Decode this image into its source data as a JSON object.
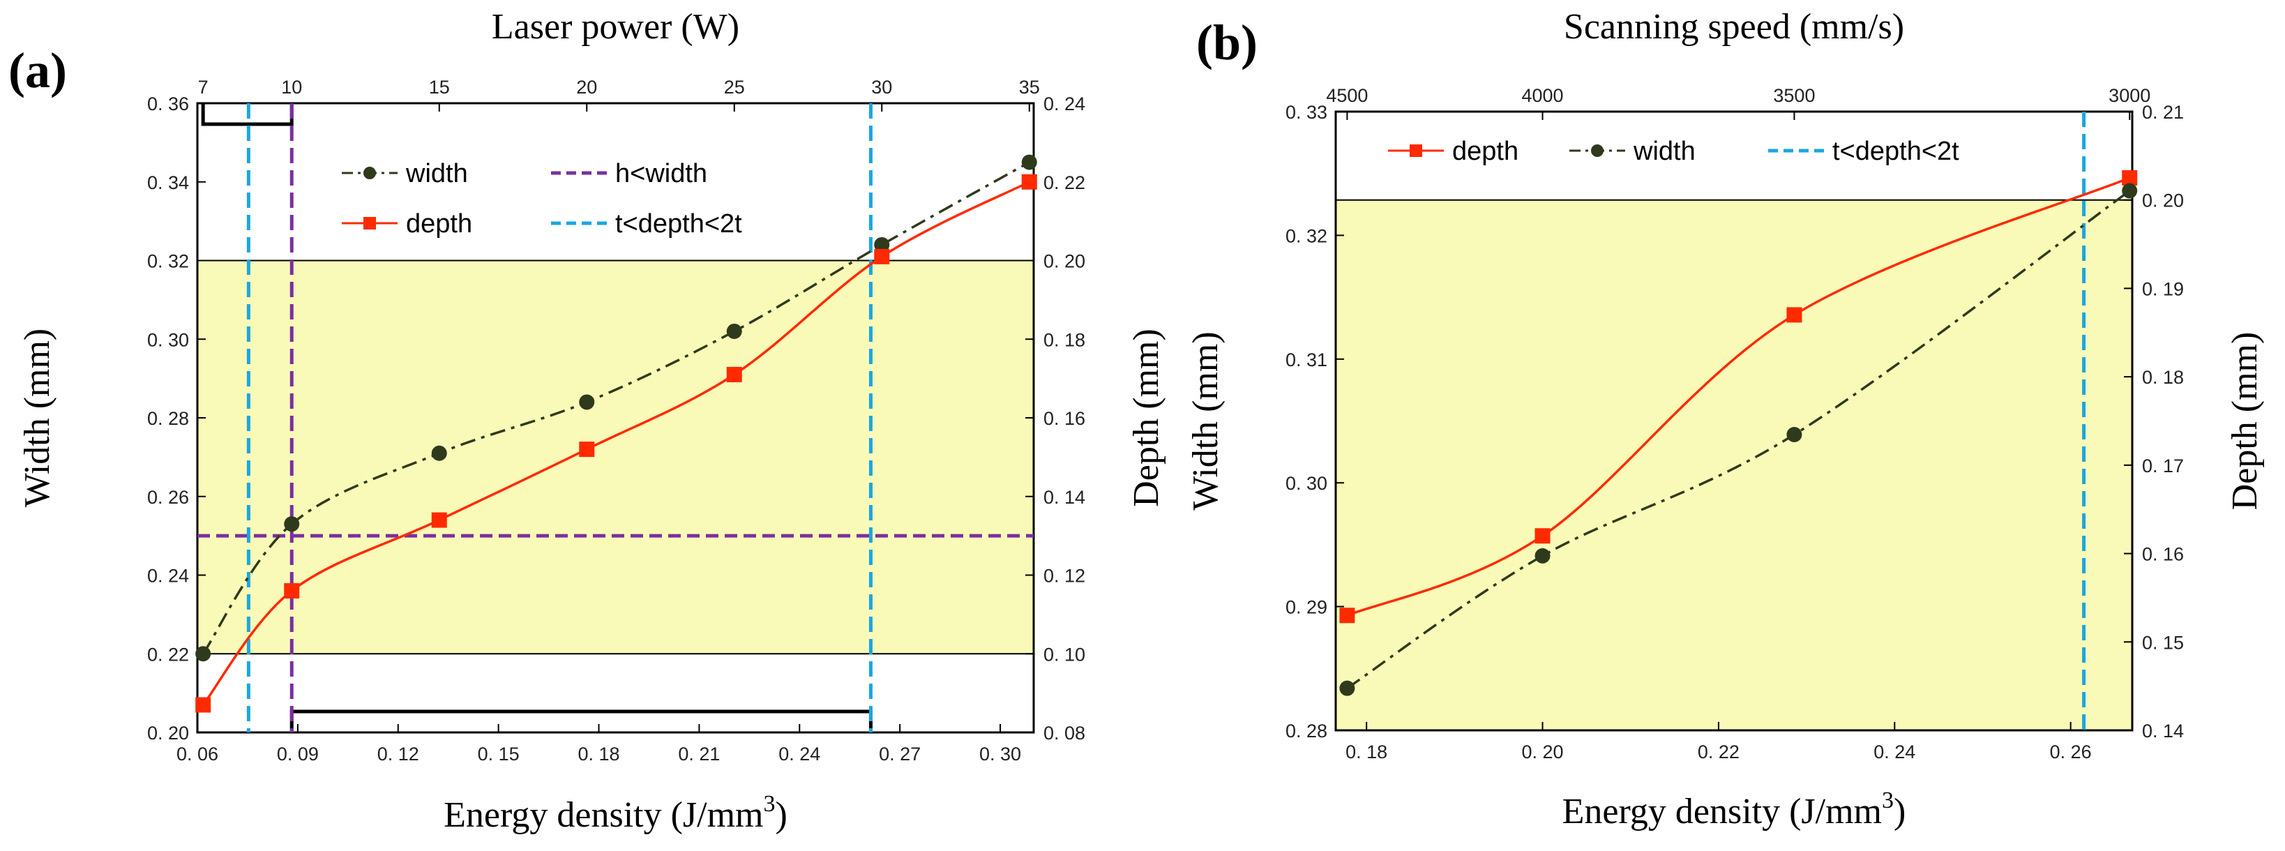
{
  "chart_data": [
    {
      "panel_label": "(a)",
      "type": "line",
      "xlabel": "Energy density (J/mm",
      "xlabel_sup": "3",
      "xlabel_end": ")",
      "ylabel_left": "Width (mm)",
      "ylabel_right": "Depth (mm)",
      "top_label": "Laser power (W)",
      "xlim": [
        0.06,
        0.31
      ],
      "ylim_left": [
        0.2,
        0.36
      ],
      "ylim_right": [
        0.08,
        0.24
      ],
      "x_ticks": [
        0.06,
        0.09,
        0.12,
        0.15,
        0.18,
        0.21,
        0.24,
        0.27,
        0.3
      ],
      "x_tick_labels": [
        "0. 06",
        "0. 09",
        "0. 12",
        "0. 15",
        "0. 18",
        "0. 21",
        "0. 24",
        "0. 27",
        "0. 30"
      ],
      "y_left_ticks": [
        0.2,
        0.22,
        0.24,
        0.26,
        0.28,
        0.3,
        0.32,
        0.34,
        0.36
      ],
      "y_left_tick_labels": [
        "0. 20",
        "0. 22",
        "0. 24",
        "0. 26",
        "0. 28",
        "0. 30",
        "0. 32",
        "0. 34",
        "0. 36"
      ],
      "y_right_ticks": [
        0.08,
        0.1,
        0.12,
        0.14,
        0.16,
        0.18,
        0.2,
        0.22,
        0.24
      ],
      "y_right_tick_labels": [
        "0. 08",
        "0. 10",
        "0. 12",
        "0. 14",
        "0. 16",
        "0. 18",
        "0. 20",
        "0. 22",
        "0. 24"
      ],
      "top_ticks": [
        0.0617,
        0.0882,
        0.1323,
        0.1764,
        0.2205,
        0.2646,
        0.3087
      ],
      "top_tick_labels": [
        "7",
        "10",
        "15",
        "20",
        "25",
        "30",
        "35"
      ],
      "series": [
        {
          "name": "width",
          "axis": "left",
          "color": "#2f3a1c",
          "marker": "circle",
          "dash": "dash-dot",
          "x": [
            0.0617,
            0.0882,
            0.1323,
            0.1764,
            0.2205,
            0.2646,
            0.3087
          ],
          "values": [
            0.22,
            0.253,
            0.271,
            0.284,
            0.302,
            0.324,
            0.345
          ]
        },
        {
          "name": "depth",
          "axis": "right",
          "color": "#ff2a00",
          "marker": "square",
          "dash": "solid",
          "x": [
            0.0617,
            0.0882,
            0.1323,
            0.1764,
            0.2205,
            0.2646,
            0.3087
          ],
          "values": [
            0.087,
            0.116,
            0.134,
            0.152,
            0.171,
            0.201,
            0.22
          ]
        }
      ],
      "ref_lines": [
        {
          "name": "h<width",
          "color": "#7b2fa0",
          "orientation": "horizontal",
          "axis": "left",
          "value": 0.25
        },
        {
          "name": "h<width",
          "color": "#7b2fa0",
          "orientation": "vertical",
          "value": 0.0882
        },
        {
          "name": "t<depth<2t",
          "color": "#1aa7e0",
          "orientation": "vertical",
          "value": 0.0753
        },
        {
          "name": "t<depth<2t",
          "color": "#1aa7e0",
          "orientation": "vertical",
          "value": 0.2613
        }
      ],
      "band": {
        "axis": "right",
        "from": 0.1,
        "to": 0.2,
        "color": "#fafab8"
      },
      "legend": {
        "position": "top",
        "entries": [
          {
            "label": "width",
            "type": "width"
          },
          {
            "label": "h<width",
            "type": "purple"
          },
          {
            "label": "depth",
            "type": "depth"
          },
          {
            "label": "t<depth<2t",
            "type": "cyan"
          }
        ]
      }
    },
    {
      "panel_label": "(b)",
      "type": "line",
      "xlabel": "Energy density (J/mm",
      "xlabel_sup": "3",
      "xlabel_end": ")",
      "ylabel_left": "Width (mm)",
      "ylabel_right": "Depth (mm)",
      "top_label": "Scanning speed (mm/s)",
      "xlim": [
        0.1765,
        0.267
      ],
      "ylim_left": [
        0.28,
        0.33
      ],
      "ylim_right": [
        0.14,
        0.21
      ],
      "x_ticks": [
        0.18,
        0.2,
        0.22,
        0.24,
        0.26
      ],
      "x_tick_labels": [
        "0. 18",
        "0. 20",
        "0. 22",
        "0. 24",
        "0. 26"
      ],
      "y_left_ticks": [
        0.28,
        0.29,
        0.3,
        0.31,
        0.32,
        0.33
      ],
      "y_left_tick_labels": [
        "0. 28",
        "0. 29",
        "0. 30",
        "0. 31",
        "0. 32",
        "0. 33"
      ],
      "y_right_ticks": [
        0.14,
        0.15,
        0.16,
        0.17,
        0.18,
        0.19,
        0.2,
        0.21
      ],
      "y_right_tick_labels": [
        "0. 14",
        "0. 15",
        "0. 16",
        "0. 17",
        "0. 18",
        "0. 19",
        "0. 20",
        "0. 21"
      ],
      "top_ticks": [
        0.1778,
        0.2,
        0.2286,
        0.2667
      ],
      "top_tick_labels": [
        "4500",
        "4000",
        "3500",
        "3000"
      ],
      "series": [
        {
          "name": "depth",
          "axis": "right",
          "color": "#ff2a00",
          "marker": "square",
          "dash": "solid",
          "x": [
            0.1778,
            0.2,
            0.2286,
            0.2667
          ],
          "values": [
            0.153,
            0.162,
            0.187,
            0.2025
          ]
        },
        {
          "name": "width",
          "axis": "left",
          "color": "#2f3a1c",
          "marker": "circle",
          "dash": "dash-dot",
          "x": [
            0.1778,
            0.2,
            0.2286,
            0.2667
          ],
          "values": [
            0.2834,
            0.2941,
            0.3039,
            0.3236
          ]
        }
      ],
      "ref_lines": [
        {
          "name": "t<depth<2t",
          "color": "#1aa7e0",
          "orientation": "vertical",
          "value": 0.2615
        }
      ],
      "band": {
        "axis": "right",
        "from": 0.14,
        "to": 0.2,
        "color": "#fafab8"
      },
      "legend": {
        "position": "top",
        "entries": [
          {
            "label": "depth",
            "type": "depth"
          },
          {
            "label": "width",
            "type": "width"
          },
          {
            "label": "t<depth<2t",
            "type": "cyan"
          }
        ]
      }
    }
  ]
}
